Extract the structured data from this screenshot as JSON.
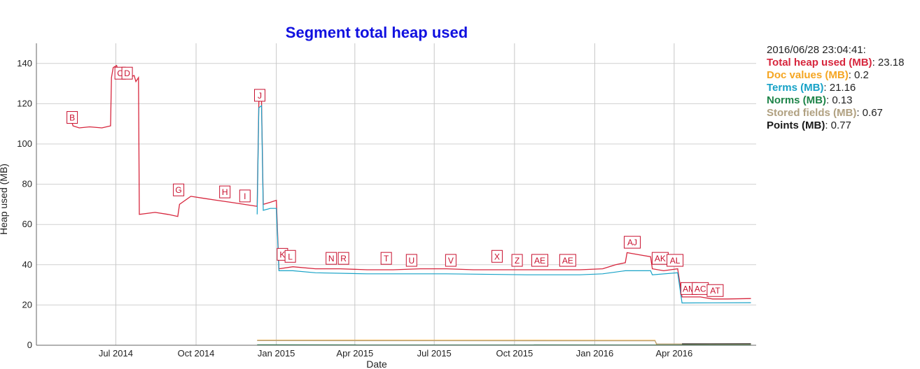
{
  "chart_data": {
    "type": "line",
    "title": "Segment total heap used",
    "xlabel": "Date",
    "ylabel": "Heap used (MB)",
    "ylim": [
      0,
      150
    ],
    "xlim": [
      "2014-04-01",
      "2016-07-04"
    ],
    "grid": true,
    "x_ticks": [
      {
        "date": "2014-07-01",
        "label": "Jul 2014"
      },
      {
        "date": "2014-10-01",
        "label": "Oct 2014"
      },
      {
        "date": "2015-01-01",
        "label": "Jan 2015"
      },
      {
        "date": "2015-04-01",
        "label": "Apr 2015"
      },
      {
        "date": "2015-07-01",
        "label": "Jul 2015"
      },
      {
        "date": "2015-10-01",
        "label": "Oct 2015"
      },
      {
        "date": "2016-01-01",
        "label": "Jan 2016"
      },
      {
        "date": "2016-04-01",
        "label": "Apr 2016"
      }
    ],
    "y_ticks": [
      0,
      20,
      40,
      60,
      80,
      100,
      120,
      140
    ],
    "series": [
      {
        "name": "Total heap used (MB)",
        "color": "#d7263d",
        "points": [
          [
            "2014-05-10",
            113
          ],
          [
            "2014-05-13",
            109
          ],
          [
            "2014-05-20",
            108
          ],
          [
            "2014-06-01",
            108.5
          ],
          [
            "2014-06-15",
            108
          ],
          [
            "2014-06-25",
            109
          ],
          [
            "2014-06-26",
            133
          ],
          [
            "2014-06-28",
            138
          ],
          [
            "2014-07-02",
            139
          ],
          [
            "2014-07-05",
            134
          ],
          [
            "2014-07-15",
            133
          ],
          [
            "2014-07-22",
            134
          ],
          [
            "2014-07-24",
            131
          ],
          [
            "2014-07-27",
            133
          ],
          [
            "2014-07-28",
            65
          ],
          [
            "2014-08-15",
            66
          ],
          [
            "2014-08-30",
            65
          ],
          [
            "2014-09-10",
            64
          ],
          [
            "2014-09-12",
            70
          ],
          [
            "2014-09-25",
            74
          ],
          [
            "2014-10-10",
            73
          ],
          [
            "2014-10-25",
            72
          ],
          [
            "2014-11-10",
            71
          ],
          [
            "2014-11-25",
            70
          ],
          [
            "2014-12-10",
            69
          ],
          [
            "2014-12-12",
            121
          ],
          [
            "2014-12-15",
            122
          ],
          [
            "2014-12-17",
            70
          ],
          [
            "2014-12-25",
            71
          ],
          [
            "2015-01-01",
            72
          ],
          [
            "2015-01-04",
            38
          ],
          [
            "2015-01-20",
            39
          ],
          [
            "2015-02-15",
            38
          ],
          [
            "2015-03-15",
            38
          ],
          [
            "2015-04-15",
            37.5
          ],
          [
            "2015-05-15",
            37.5
          ],
          [
            "2015-06-15",
            38
          ],
          [
            "2015-07-15",
            38
          ],
          [
            "2015-08-15",
            37.5
          ],
          [
            "2015-09-15",
            37.5
          ],
          [
            "2015-10-15",
            37.5
          ],
          [
            "2015-11-15",
            37.5
          ],
          [
            "2015-12-15",
            37.5
          ],
          [
            "2016-01-10",
            38
          ],
          [
            "2016-01-25",
            40
          ],
          [
            "2016-02-05",
            41
          ],
          [
            "2016-02-07",
            46
          ],
          [
            "2016-02-20",
            45
          ],
          [
            "2016-03-05",
            44
          ],
          [
            "2016-03-07",
            38
          ],
          [
            "2016-03-20",
            37
          ],
          [
            "2016-04-05",
            38
          ],
          [
            "2016-04-10",
            24
          ],
          [
            "2016-05-01",
            24
          ],
          [
            "2016-05-15",
            23
          ],
          [
            "2016-06-01",
            23
          ],
          [
            "2016-06-28",
            23.18
          ]
        ]
      },
      {
        "name": "Doc values (MB)",
        "color": "#f5a623",
        "points": [
          [
            "2014-12-10",
            2.5
          ],
          [
            "2016-03-10",
            2.4
          ],
          [
            "2016-03-12",
            0.2
          ],
          [
            "2016-06-28",
            0.2
          ]
        ]
      },
      {
        "name": "Terms (MB)",
        "color": "#17a2c7",
        "points": [
          [
            "2014-12-10",
            65
          ],
          [
            "2014-12-12",
            118
          ],
          [
            "2014-12-15",
            119
          ],
          [
            "2014-12-17",
            67
          ],
          [
            "2014-12-25",
            68
          ],
          [
            "2015-01-01",
            68
          ],
          [
            "2015-01-04",
            37
          ],
          [
            "2015-01-20",
            37
          ],
          [
            "2015-02-15",
            36
          ],
          [
            "2015-04-15",
            35.5
          ],
          [
            "2015-07-15",
            35.5
          ],
          [
            "2015-10-15",
            35
          ],
          [
            "2015-12-15",
            35
          ],
          [
            "2016-01-10",
            35.5
          ],
          [
            "2016-02-05",
            37
          ],
          [
            "2016-03-05",
            37
          ],
          [
            "2016-03-07",
            35
          ],
          [
            "2016-04-05",
            36
          ],
          [
            "2016-04-10",
            21
          ],
          [
            "2016-06-28",
            21.16
          ]
        ]
      },
      {
        "name": "Norms (MB)",
        "color": "#1e8449",
        "points": [
          [
            "2014-12-10",
            0.2
          ],
          [
            "2016-06-28",
            0.13
          ]
        ]
      },
      {
        "name": "Stored fields (MB)",
        "color": "#b0a080",
        "points": [
          [
            "2014-12-10",
            2.3
          ],
          [
            "2016-03-10",
            2.2
          ],
          [
            "2016-03-12",
            0.7
          ],
          [
            "2016-06-28",
            0.67
          ]
        ]
      },
      {
        "name": "Points (MB)",
        "color": "#1a1a1a",
        "points": [
          [
            "2016-04-10",
            0.7
          ],
          [
            "2016-06-28",
            0.77
          ]
        ]
      }
    ],
    "annotations": [
      {
        "label": "B",
        "date": "2014-05-12",
        "y": 113
      },
      {
        "label": "C",
        "date": "2014-07-06",
        "y": 135
      },
      {
        "label": "D",
        "date": "2014-07-14",
        "y": 135
      },
      {
        "label": "G",
        "date": "2014-09-11",
        "y": 77
      },
      {
        "label": "H",
        "date": "2014-11-03",
        "y": 76
      },
      {
        "label": "I",
        "date": "2014-11-26",
        "y": 74
      },
      {
        "label": "J",
        "date": "2014-12-13",
        "y": 124
      },
      {
        "label": "K",
        "date": "2015-01-08",
        "y": 45
      },
      {
        "label": "L",
        "date": "2015-01-17",
        "y": 44
      },
      {
        "label": "N",
        "date": "2015-03-05",
        "y": 43
      },
      {
        "label": "R",
        "date": "2015-03-19",
        "y": 43
      },
      {
        "label": "T",
        "date": "2015-05-07",
        "y": 43
      },
      {
        "label": "U",
        "date": "2015-06-05",
        "y": 42
      },
      {
        "label": "V",
        "date": "2015-07-20",
        "y": 42
      },
      {
        "label": "X",
        "date": "2015-09-11",
        "y": 44
      },
      {
        "label": "Z",
        "date": "2015-10-04",
        "y": 42
      },
      {
        "label": "AE",
        "date": "2015-10-30",
        "y": 42
      },
      {
        "label": "AE",
        "date": "2015-12-01",
        "y": 42
      },
      {
        "label": "AJ",
        "date": "2016-02-13",
        "y": 51
      },
      {
        "label": "AK",
        "date": "2016-03-16",
        "y": 43
      },
      {
        "label": "AL",
        "date": "2016-04-02",
        "y": 42
      },
      {
        "label": "AM",
        "date": "2016-04-18",
        "y": 28
      },
      {
        "label": "AC",
        "date": "2016-05-01",
        "y": 28
      },
      {
        "label": "AT",
        "date": "2016-05-18",
        "y": 27
      }
    ]
  },
  "legend": {
    "timestamp": "2016/06/28 23:04:41:",
    "items": [
      {
        "label": "Total heap used (MB)",
        "value": ": 23.18",
        "color": "#d7263d"
      },
      {
        "label": "Doc values (MB)",
        "value": ": 0.2",
        "color": "#f5a623"
      },
      {
        "label": "Terms (MB)",
        "value": ": 21.16",
        "color": "#17a2c7"
      },
      {
        "label": "Norms (MB)",
        "value": ": 0.13",
        "color": "#1e8449"
      },
      {
        "label": "Stored fields (MB)",
        "value": ": 0.67",
        "color": "#b0a080"
      },
      {
        "label": "Points (MB)",
        "value": ": 0.77",
        "color": "#1a1a1a"
      }
    ]
  }
}
